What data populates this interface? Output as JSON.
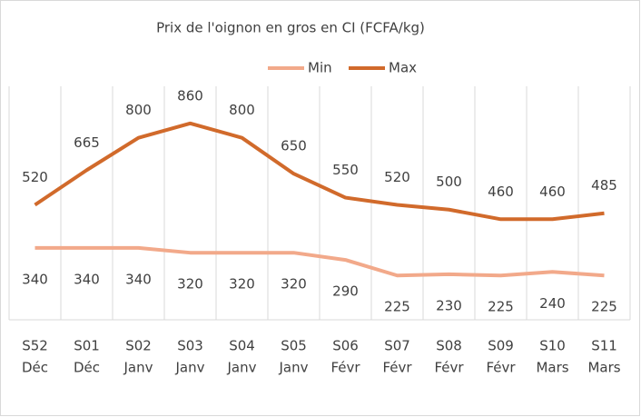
{
  "chart_data": {
    "type": "line",
    "title": "Prix de l'oignon en gros en CI (FCFA/kg)",
    "categories": [
      [
        "S52",
        "Déc"
      ],
      [
        "S01",
        "Déc"
      ],
      [
        "S02",
        "Janv"
      ],
      [
        "S03",
        "Janv"
      ],
      [
        "S04",
        "Janv"
      ],
      [
        "S05",
        "Janv"
      ],
      [
        "S06",
        "Févr"
      ],
      [
        "S07",
        "Févr"
      ],
      [
        "S08",
        "Févr"
      ],
      [
        "S09",
        "Févr"
      ],
      [
        "S10",
        "Mars"
      ],
      [
        "S11",
        "Mars"
      ]
    ],
    "series": [
      {
        "name": "Min",
        "color": "#f2a98a",
        "values": [
          340,
          340,
          340,
          320,
          320,
          320,
          290,
          225,
          230,
          225,
          240,
          225
        ]
      },
      {
        "name": "Max",
        "color": "#d16a2b",
        "values": [
          520,
          665,
          800,
          860,
          800,
          650,
          550,
          520,
          500,
          460,
          460,
          485
        ]
      }
    ],
    "ylim": [
      40,
      1015
    ],
    "grid": true,
    "legend": "top"
  }
}
